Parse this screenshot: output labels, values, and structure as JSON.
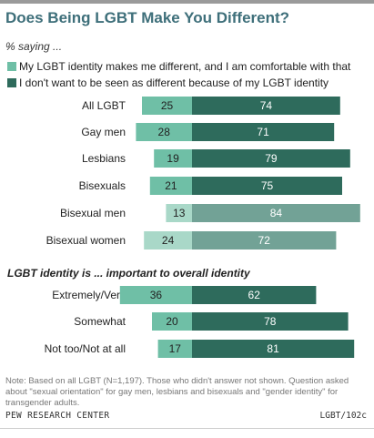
{
  "title": "Does Being LGBT Make You Different?",
  "subtitle": "% saying ...",
  "colors": {
    "diff": "#6fbfa6",
    "diff_light": "#a9d8c8",
    "not_diff": "#2e6b5c",
    "not_diff_light": "#72a296"
  },
  "chart_data": {
    "type": "bar",
    "orientation": "horizontal-diverging",
    "series": [
      {
        "name": "My LGBT identity makes me different, and I am comfortable with that",
        "values": [
          25,
          28,
          19,
          21,
          13,
          24,
          36,
          20,
          17
        ]
      },
      {
        "name": "I don't want to be seen as different because of my LGBT identity",
        "values": [
          74,
          71,
          79,
          75,
          84,
          72,
          62,
          78,
          81
        ]
      }
    ],
    "groups": [
      {
        "heading": "",
        "categories": [
          "All LGBT",
          "Gay men",
          "Lesbians",
          "Bisexuals",
          "Bisexual men",
          "Bisexual women"
        ],
        "light": [
          false,
          false,
          false,
          false,
          true,
          true
        ]
      },
      {
        "heading": "LGBT identity is ... important to overall identity",
        "categories": [
          "Extremely/Very",
          "Somewhat",
          "Not too/Not at all"
        ],
        "light": [
          false,
          false,
          false
        ]
      }
    ]
  },
  "note": "Note: Based on all LGBT (N=1,197). Those who didn't answer not shown. Question asked about \"sexual orientation\" for gay men, lesbians and bisexuals and \"gender identity\" for transgender adults.",
  "source": "PEW RESEARCH CENTER",
  "code": "LGBT/102c"
}
